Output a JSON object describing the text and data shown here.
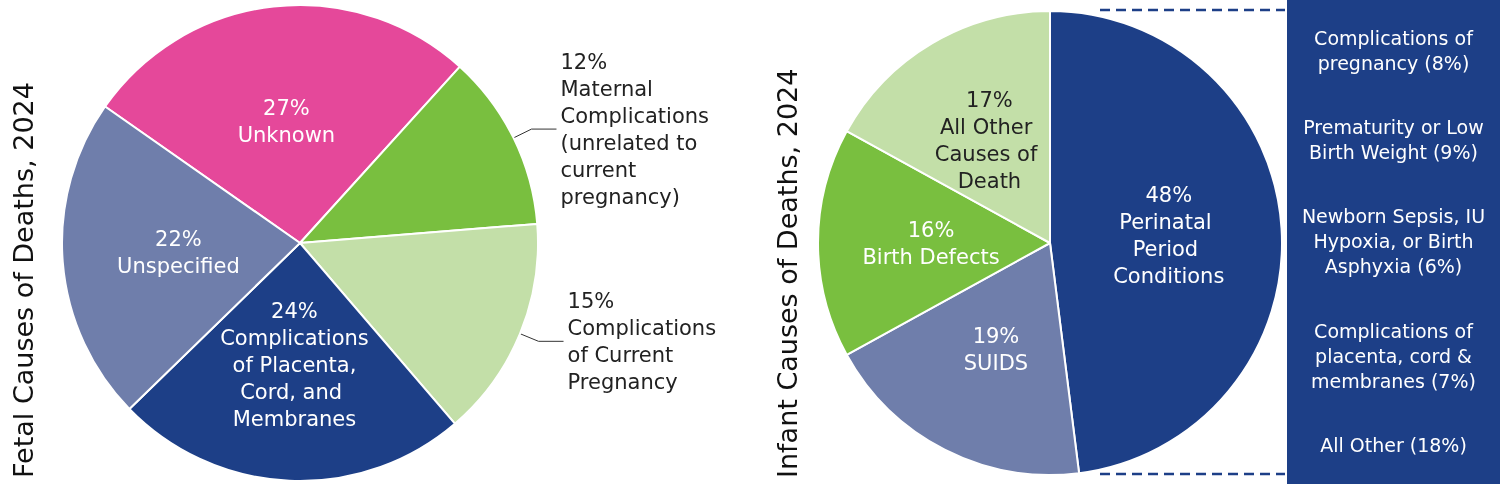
{
  "chart_data": [
    {
      "type": "pie",
      "title": "Fetal Causes of Deaths, 2024",
      "categories": [
        "Unknown",
        "Maternal Complications (unrelated to current pregnancy)",
        "Complications of Current Pregnancy",
        "Complications of Placenta, Cord, and Membranes",
        "Unspecified"
      ],
      "values": [
        27,
        12,
        15,
        24,
        22
      ],
      "value_labels": [
        "27%",
        "12%",
        "15%",
        "24%",
        "22%"
      ],
      "colors": [
        "#e5489a",
        "#79bf3f",
        "#c3dfa8",
        "#1d3f87",
        "#6f7eab"
      ],
      "legend": false
    },
    {
      "type": "pie",
      "title": "Infant Causes of Deaths, 2024",
      "categories": [
        "Perinatal Period Conditions",
        "SUIDS",
        "Birth Defects",
        "All Other Causes of Death"
      ],
      "values": [
        48,
        19,
        16,
        17
      ],
      "value_labels": [
        "48%",
        "19%",
        "16%",
        "17%"
      ],
      "colors": [
        "#1d3f87",
        "#6f7eab",
        "#79bf3f",
        "#c3dfa8"
      ],
      "legend": false
    },
    {
      "type": "other",
      "annotations": [
        "Complications of pregnancy (8%)",
        "Prematurity or Low Birth Weight (9%)",
        "Newborn Sepsis, IU Hypoxia, or Birth Asphyxia (6%)",
        "Complications of placenta, cord & membranes (7%)",
        "All Other (18%)"
      ]
    }
  ]
}
